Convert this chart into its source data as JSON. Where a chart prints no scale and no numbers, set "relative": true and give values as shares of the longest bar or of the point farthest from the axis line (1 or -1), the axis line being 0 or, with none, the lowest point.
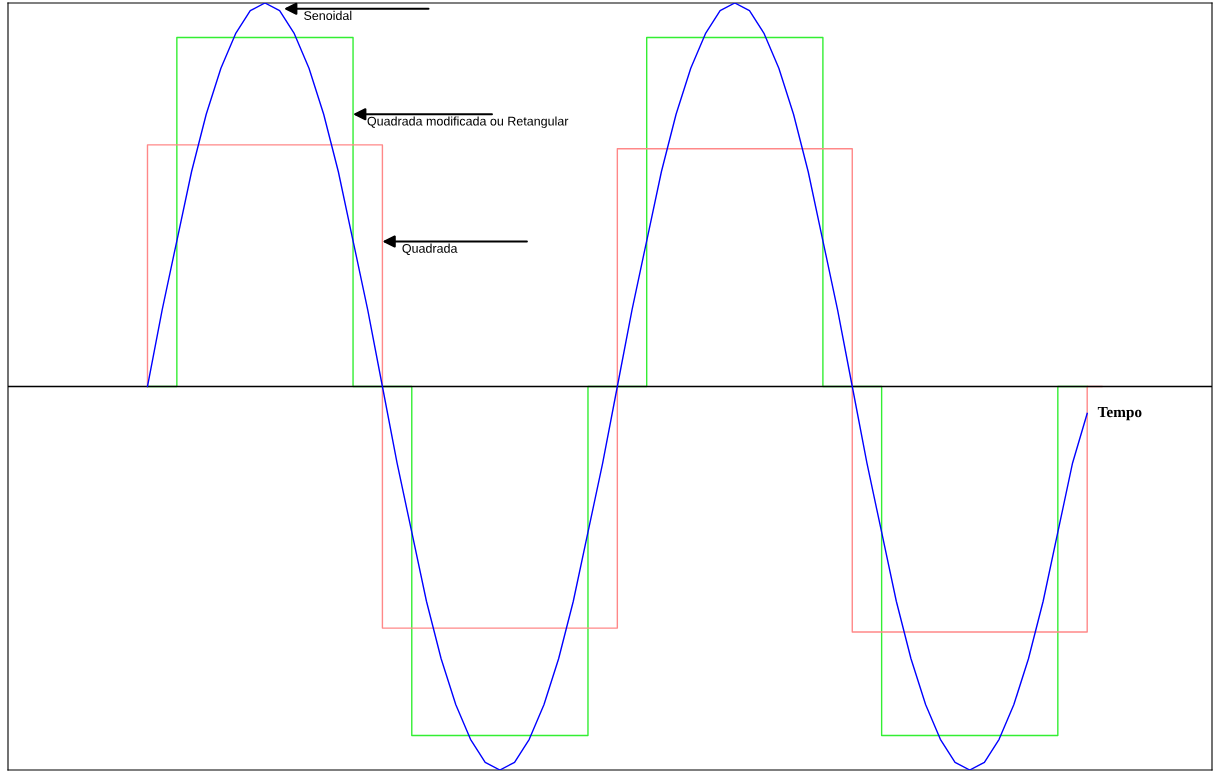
{
  "chart_data": {
    "type": "line",
    "relative": true,
    "xlabel": "Tempo",
    "legend": false,
    "marker": "none",
    "categories": [
      null,
      null,
      null,
      null,
      null,
      null,
      null,
      null,
      null,
      null,
      null,
      null,
      null,
      null,
      null,
      null,
      null,
      null,
      null,
      null,
      null,
      null,
      null,
      null,
      null,
      null,
      null,
      null,
      null,
      null,
      null,
      null,
      null,
      null,
      null,
      null,
      null,
      null,
      null,
      null,
      null,
      null,
      null,
      null,
      null,
      null,
      null,
      null,
      null,
      null,
      null,
      null,
      null,
      null,
      null,
      null,
      null,
      null,
      null,
      null,
      null,
      null,
      null,
      null,
      null,
      null,
      null,
      null,
      null,
      null,
      null,
      null,
      null,
      null,
      null,
      null,
      null,
      null,
      null,
      null,
      null,
      null
    ],
    "series": [
      {
        "name": "Senoidal",
        "color": "#0000ff",
        "values": [
          null,
          null,
          null,
          null,
          null,
          null,
          null,
          null,
          null,
          0,
          0.2,
          0.38,
          0.56,
          0.71,
          0.83,
          0.92,
          0.98,
          1,
          0.98,
          0.92,
          0.83,
          0.71,
          0.56,
          0.38,
          0.2,
          0,
          -0.2,
          -0.38,
          -0.56,
          -0.71,
          -0.83,
          -0.92,
          -0.98,
          -1,
          -0.98,
          -0.92,
          -0.83,
          -0.71,
          -0.56,
          -0.38,
          -0.2,
          0,
          0.2,
          0.38,
          0.56,
          0.71,
          0.83,
          0.92,
          0.98,
          1,
          0.98,
          0.92,
          0.83,
          0.71,
          0.56,
          0.38,
          0.2,
          0,
          -0.2,
          -0.38,
          -0.56,
          -0.71,
          -0.83,
          -0.92,
          -0.98,
          -1,
          -0.98,
          -0.92,
          -0.83,
          -0.71,
          -0.56,
          -0.38,
          -0.2,
          -0.07,
          null,
          null,
          null,
          null,
          null,
          null,
          null,
          null
        ]
      },
      {
        "name": "Quadrada modificada ou Retangular",
        "type": "step",
        "color": "#33ee33",
        "values": [
          null,
          null,
          null,
          null,
          null,
          null,
          null,
          null,
          null,
          0,
          0,
          0,
          0.91,
          0.91,
          0.91,
          0.91,
          0.91,
          0.91,
          0.91,
          0.91,
          0.91,
          0.91,
          0.91,
          0.91,
          0,
          0,
          0,
          0,
          -0.91,
          -0.91,
          -0.91,
          -0.91,
          -0.91,
          -0.91,
          -0.91,
          -0.91,
          -0.91,
          -0.91,
          -0.91,
          -0.91,
          0,
          0,
          0,
          0,
          0.91,
          0.91,
          0.91,
          0.91,
          0.91,
          0.91,
          0.91,
          0.91,
          0.91,
          0.91,
          0.91,
          0.91,
          0,
          0,
          0,
          0,
          -0.91,
          -0.91,
          -0.91,
          -0.91,
          -0.91,
          -0.91,
          -0.91,
          -0.91,
          -0.91,
          -0.91,
          -0.91,
          -0.91,
          0,
          0,
          null,
          null,
          null,
          null,
          null,
          null,
          null,
          null
        ]
      },
      {
        "name": "Quadrada",
        "type": "step",
        "color": "#ff8888",
        "values": [
          null,
          null,
          null,
          null,
          null,
          null,
          null,
          null,
          null,
          0,
          0.63,
          0.63,
          0.63,
          0.63,
          0.63,
          0.63,
          0.63,
          0.63,
          0.63,
          0.63,
          0.63,
          0.63,
          0.63,
          0.63,
          0.63,
          0.63,
          -0.63,
          -0.63,
          -0.63,
          -0.63,
          -0.63,
          -0.63,
          -0.63,
          -0.63,
          -0.63,
          -0.63,
          -0.63,
          -0.63,
          -0.63,
          -0.63,
          -0.63,
          -0.63,
          0.62,
          0.62,
          0.62,
          0.62,
          0.62,
          0.62,
          0.62,
          0.62,
          0.62,
          0.62,
          0.62,
          0.62,
          0.62,
          0.62,
          0.62,
          0.62,
          -0.64,
          -0.64,
          -0.64,
          -0.64,
          -0.64,
          -0.64,
          -0.64,
          -0.64,
          -0.64,
          -0.64,
          -0.64,
          -0.64,
          -0.64,
          -0.64,
          -0.64,
          -0.64,
          0,
          null,
          null,
          null,
          null,
          null,
          null,
          null
        ]
      }
    ]
  }
}
